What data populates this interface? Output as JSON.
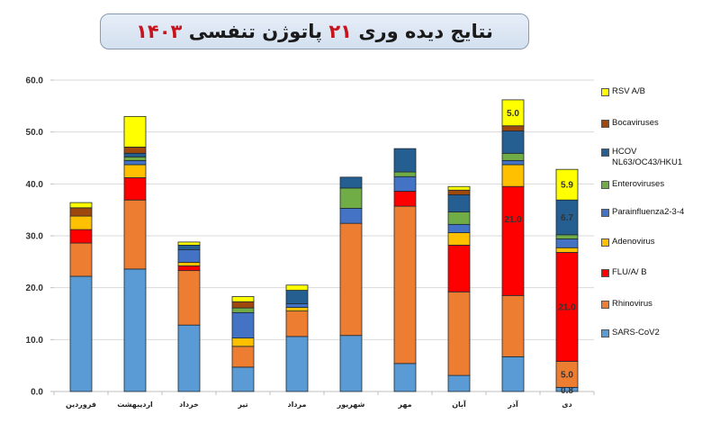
{
  "header": {
    "title_part1": "نتایج دیده وری",
    "title_num": "۲۱",
    "title_part2": "پاتوژن تنفسی",
    "title_year": "۱۴۰۳"
  },
  "chart_data": {
    "type": "bar",
    "stacked": true,
    "title": "نتایج دیده وری ۲۱ پاتوژن تنفسی ۱۴۰۳",
    "xlabel": "",
    "ylabel": "",
    "ylim": [
      0,
      60
    ],
    "yticks": [
      "0.0",
      "10.0",
      "20.0",
      "30.0",
      "40.0",
      "50.0",
      "60.0"
    ],
    "grid": true,
    "legend_position": "right",
    "categories": [
      "فروردین",
      "اردیبهشت",
      "خرداد",
      "تیر",
      "مرداد",
      "شهریور",
      "مهر",
      "آبان",
      "آذر",
      "دی"
    ],
    "series": [
      {
        "name": "SARS-CoV2",
        "color": "#5b9bd5",
        "values": [
          22.2,
          23.6,
          12.8,
          4.7,
          10.6,
          10.8,
          5.4,
          3.1,
          6.7,
          0.8
        ]
      },
      {
        "name": "Rhinovirus",
        "color": "#ed7d31",
        "values": [
          6.4,
          13.3,
          10.5,
          4.0,
          4.9,
          21.6,
          30.3,
          16.1,
          11.8,
          5.0
        ]
      },
      {
        "name": "FLU/A/ B",
        "color": "#ff0000",
        "values": [
          2.6,
          4.3,
          0.9,
          0,
          0,
          0,
          2.9,
          9.0,
          21.0,
          21.0
        ]
      },
      {
        "name": "Adenovirus",
        "color": "#ffc000",
        "values": [
          2.6,
          2.5,
          0.7,
          1.6,
          0.7,
          0,
          0,
          2.4,
          4.2,
          0.9
        ]
      },
      {
        "name": "Parainfluenza2-3-4",
        "color": "#4472c4",
        "values": [
          0,
          0.8,
          2.4,
          4.9,
          0.7,
          2.9,
          2.8,
          1.6,
          0.8,
          1.7
        ]
      },
      {
        "name": "Enteroviruses",
        "color": "#70ad47",
        "values": [
          0,
          0.7,
          0,
          0.9,
          0,
          3.9,
          0.9,
          2.4,
          1.4,
          0.8
        ]
      },
      {
        "name": "HCOV\nNL63/OC43/HKU1",
        "color": "#255e91",
        "values": [
          0,
          0.7,
          0.9,
          0,
          2.6,
          2.1,
          4.5,
          3.3,
          4.3,
          6.7
        ]
      },
      {
        "name": "Bocaviruses",
        "color": "#9e480e",
        "values": [
          1.6,
          1.2,
          0,
          1.2,
          0,
          0,
          0,
          0.9,
          1.0,
          0
        ]
      },
      {
        "name": "RSV A/B",
        "color": "#ffff00",
        "values": [
          1.0,
          5.9,
          0.6,
          1.0,
          1.0,
          0,
          0,
          0.7,
          5.0,
          5.9
        ]
      }
    ],
    "data_labels": [
      {
        "category": "آذر",
        "series": "FLU/A/ B",
        "text": "21.0"
      },
      {
        "category": "آذر",
        "series": "RSV A/B",
        "text": "5.0"
      },
      {
        "category": "دی",
        "series": "SARS-CoV2",
        "text": "0.8"
      },
      {
        "category": "دی",
        "series": "Rhinovirus",
        "text": "5.0"
      },
      {
        "category": "دی",
        "series": "FLU/A/ B",
        "text": "21.0"
      },
      {
        "category": "دی",
        "series": "HCOV\nNL63/OC43/HKU1",
        "text": "6.7"
      },
      {
        "category": "دی",
        "series": "RSV A/B",
        "text": "5.9"
      }
    ],
    "legend_order": [
      "RSV A/B",
      "Bocaviruses",
      "HCOV\nNL63/OC43/HKU1",
      "Enteroviruses",
      "Parainfluenza2-3-4",
      "Adenovirus",
      "FLU/A/ B",
      "Rhinovirus",
      "SARS-CoV2"
    ]
  }
}
